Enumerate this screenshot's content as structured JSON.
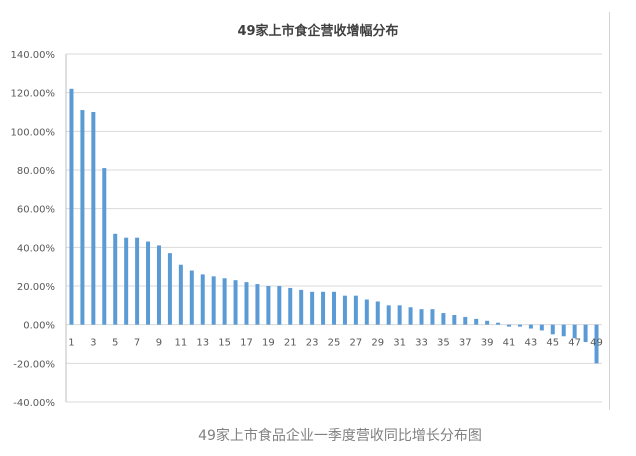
{
  "chart_data": {
    "type": "bar",
    "title": "49家上市食企营收增幅分布",
    "caption": "49家上市食品企业一季度营收同比增长分布图",
    "xlabel": "",
    "ylabel": "",
    "ylim": [
      -0.4,
      1.4
    ],
    "yticks": [
      {
        "value": 1.4,
        "label": "140.00%"
      },
      {
        "value": 1.2,
        "label": "120.00%"
      },
      {
        "value": 1.0,
        "label": "100.00%"
      },
      {
        "value": 0.8,
        "label": "80.00%"
      },
      {
        "value": 0.6,
        "label": "60.00%"
      },
      {
        "value": 0.4,
        "label": "40.00%"
      },
      {
        "value": 0.2,
        "label": "20.00%"
      },
      {
        "value": 0.0,
        "label": "0.00%"
      },
      {
        "value": -0.2,
        "label": "-20.00%"
      },
      {
        "value": -0.4,
        "label": "-40.00%"
      }
    ],
    "categories": [
      "1",
      "2",
      "3",
      "4",
      "5",
      "6",
      "7",
      "8",
      "9",
      "10",
      "11",
      "12",
      "13",
      "14",
      "15",
      "16",
      "17",
      "18",
      "19",
      "20",
      "21",
      "22",
      "23",
      "24",
      "25",
      "26",
      "27",
      "28",
      "29",
      "30",
      "31",
      "32",
      "33",
      "34",
      "35",
      "36",
      "37",
      "38",
      "39",
      "40",
      "41",
      "42",
      "43",
      "44",
      "45",
      "46",
      "47",
      "48",
      "49"
    ],
    "x_tick_labels": [
      "1",
      "3",
      "5",
      "7",
      "9",
      "11",
      "13",
      "15",
      "17",
      "19",
      "21",
      "23",
      "25",
      "27",
      "29",
      "31",
      "33",
      "35",
      "37",
      "39",
      "41",
      "43",
      "45",
      "47",
      "49"
    ],
    "values": [
      1.22,
      1.11,
      1.1,
      0.81,
      0.47,
      0.45,
      0.45,
      0.43,
      0.41,
      0.37,
      0.31,
      0.28,
      0.26,
      0.25,
      0.24,
      0.23,
      0.22,
      0.21,
      0.2,
      0.2,
      0.19,
      0.18,
      0.17,
      0.17,
      0.17,
      0.15,
      0.15,
      0.13,
      0.12,
      0.1,
      0.1,
      0.09,
      0.08,
      0.08,
      0.06,
      0.05,
      0.04,
      0.03,
      0.02,
      0.01,
      -0.01,
      -0.01,
      -0.02,
      -0.03,
      -0.05,
      -0.06,
      -0.07,
      -0.09,
      -0.2
    ],
    "colors": {
      "bar": "#5b9bd5",
      "grid": "#d9d9d9",
      "axis": "#bfbfbf",
      "tick_text": "#595959"
    },
    "grid": true,
    "legend": false
  }
}
